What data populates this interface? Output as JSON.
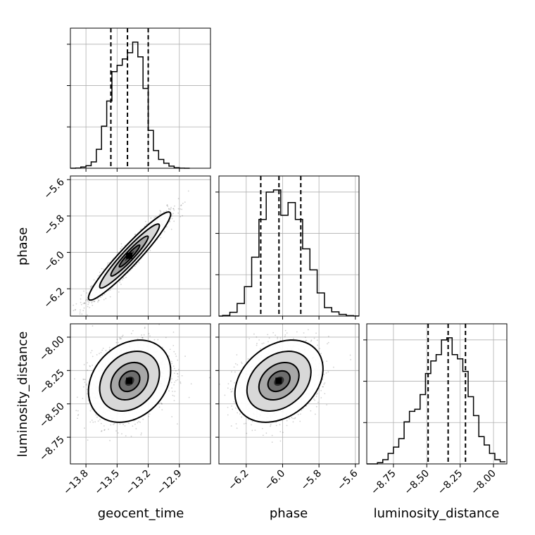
{
  "chart_data": {
    "type": "corner",
    "parameters": [
      "geocent_time",
      "phase",
      "luminosity_distance"
    ],
    "ranges": {
      "geocent_time": [
        -13.95,
        -12.6
      ],
      "phase": [
        -6.35,
        -5.58
      ],
      "luminosity_distance": [
        -8.95,
        -7.9
      ]
    },
    "ticks": {
      "geocent_time": [
        "-13.8",
        "-13.5",
        "-13.2",
        "-12.9"
      ],
      "phase": [
        "-6.2",
        "-6.0",
        "-5.8",
        "-5.6"
      ],
      "luminosity_distance": [
        "-8.75",
        "-8.50",
        "-8.25",
        "-8.00"
      ]
    },
    "tick_values": {
      "geocent_time": [
        -13.8,
        -13.5,
        -13.2,
        -12.9
      ],
      "phase": [
        -6.2,
        -6.0,
        -5.8,
        -5.6
      ],
      "luminosity_distance": [
        -8.75,
        -8.5,
        -8.25,
        -8.0
      ]
    },
    "histograms": {
      "geocent_time": {
        "bin_edges": [
          -13.95,
          -13.9,
          -13.85,
          -13.8,
          -13.75,
          -13.7,
          -13.65,
          -13.6,
          -13.55,
          -13.5,
          -13.45,
          -13.4,
          -13.35,
          -13.3,
          -13.25,
          -13.2,
          -13.15,
          -13.1,
          -13.05,
          -13.0,
          -12.95,
          -12.9,
          -12.85,
          -12.8
        ],
        "counts": [
          1,
          5,
          30,
          60,
          150,
          450,
          1000,
          1600,
          2300,
          2450,
          2600,
          2750,
          3000,
          2650,
          1900,
          900,
          420,
          210,
          120,
          50,
          12,
          3,
          0
        ]
      },
      "phase": {
        "bin_edges": [
          -6.37,
          -6.33,
          -6.29,
          -6.25,
          -6.21,
          -6.17,
          -6.13,
          -6.09,
          -6.05,
          -6.01,
          -5.97,
          -5.93,
          -5.89,
          -5.85,
          -5.81,
          -5.77,
          -5.73,
          -5.69,
          -5.65,
          -5.61,
          -5.57
        ],
        "counts": [
          0,
          15,
          90,
          300,
          700,
          1400,
          2300,
          2950,
          3000,
          2400,
          2700,
          2300,
          1600,
          1100,
          550,
          200,
          100,
          40,
          10,
          2
        ]
      },
      "luminosity_distance": {
        "bin_edges": [
          -8.95,
          -8.91,
          -8.87,
          -8.83,
          -8.79,
          -8.75,
          -8.71,
          -8.67,
          -8.63,
          -8.59,
          -8.55,
          -8.51,
          -8.47,
          -8.43,
          -8.39,
          -8.35,
          -8.31,
          -8.27,
          -8.23,
          -8.19,
          -8.15,
          -8.11,
          -8.07,
          -8.03,
          -7.99,
          -7.95,
          -7.91
        ],
        "counts": [
          0,
          0,
          30,
          100,
          250,
          400,
          600,
          1000,
          1250,
          1300,
          1650,
          2150,
          2450,
          2600,
          2950,
          3000,
          2600,
          2500,
          2200,
          1600,
          1150,
          650,
          450,
          250,
          100,
          50
        ]
      }
    },
    "quantiles": {
      "geocent_time": [
        -13.56,
        -13.4,
        -13.2
      ],
      "phase": [
        -6.12,
        -6.02,
        -5.9
      ],
      "luminosity_distance": [
        -8.49,
        -8.34,
        -8.21
      ]
    },
    "correlations": {
      "phase|geocent_time": 0.95,
      "luminosity_distance|geocent_time": 0.25,
      "luminosity_distance|phase": 0.3
    },
    "centers": {
      "geocent_time": -13.38,
      "phase": -6.02,
      "luminosity_distance": -8.33
    },
    "grid": true
  }
}
